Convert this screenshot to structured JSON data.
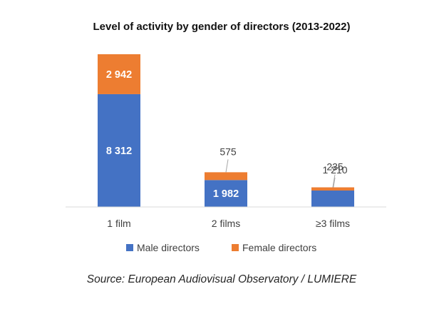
{
  "title": "Level of activity by gender of directors (2013-2022)",
  "source": "Source: European Audiovisual Observatory / LUMIERE",
  "colors": {
    "male": "#4472c4",
    "female": "#ed7d31",
    "axis": "#d9d9d9",
    "leader": "#a6a6a6"
  },
  "legend": {
    "male": "Male directors",
    "female": "Female directors"
  },
  "chart_data": {
    "type": "bar",
    "stacked": true,
    "title": "Level of activity by gender of directors (2013-2022)",
    "categories": [
      "1 film",
      "2 films",
      "≥3 films"
    ],
    "series": [
      {
        "name": "Male directors",
        "values": [
          8312,
          1982,
          1210
        ],
        "labels": [
          "8 312",
          "1 982",
          "1 210"
        ]
      },
      {
        "name": "Female directors",
        "values": [
          2942,
          575,
          235
        ],
        "labels": [
          "2 942",
          "575",
          "235"
        ]
      }
    ],
    "ylim": [
      0,
      11254
    ],
    "grid": false,
    "legend_position": "bottom"
  }
}
